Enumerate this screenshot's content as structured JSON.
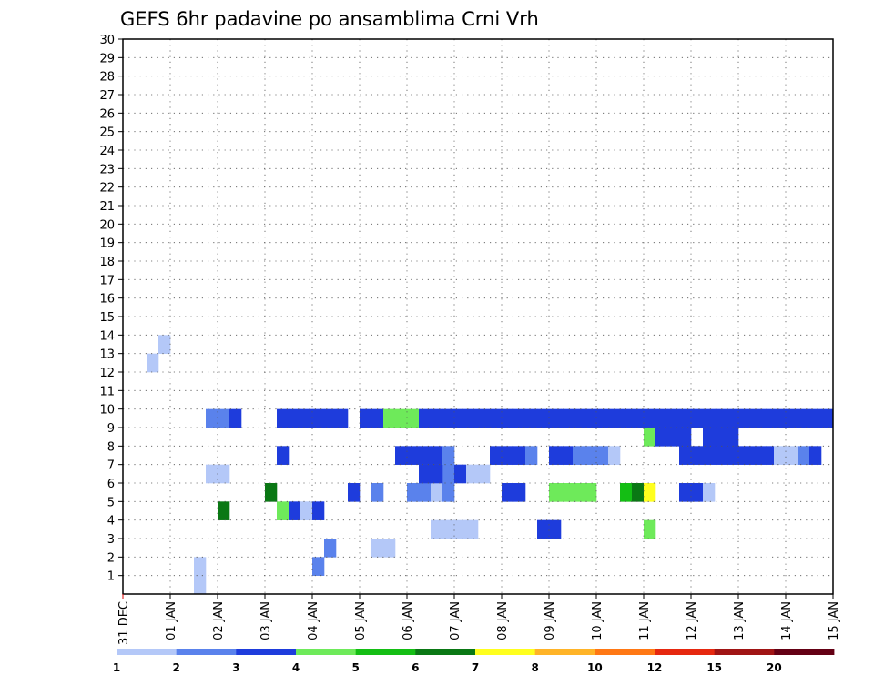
{
  "chart_data": {
    "type": "heatmap",
    "title": "GEFS 6hr padavine po ansamblima Crni Vrh",
    "xlabel": "",
    "ylabel": "",
    "x_tick_labels": [
      "31 DEC",
      "01 JAN",
      "02 JAN",
      "03 JAN",
      "04 JAN",
      "05 JAN",
      "06 JAN",
      "07 JAN",
      "08 JAN",
      "09 JAN",
      "10 JAN",
      "11 JAN",
      "12 JAN",
      "13 JAN",
      "14 JAN",
      "15 JAN"
    ],
    "y_tick_labels": [
      "1",
      "2",
      "3",
      "4",
      "5",
      "6",
      "7",
      "8",
      "9",
      "10",
      "11",
      "12",
      "13",
      "14",
      "15",
      "16",
      "17",
      "18",
      "19",
      "20",
      "21",
      "22",
      "23",
      "24",
      "25",
      "26",
      "27",
      "28",
      "29",
      "30"
    ],
    "xlim_days": [
      0,
      15
    ],
    "ylim_members": [
      0,
      30
    ],
    "time_step_hours": 6,
    "grid": true,
    "colorbar": {
      "placement": "bottom",
      "labels": [
        "1",
        "2",
        "3",
        "4",
        "5",
        "6",
        "7",
        "8",
        "10",
        "12",
        "15",
        "20"
      ],
      "colors": [
        "#b4c8f8",
        "#5a82ec",
        "#1e3cdc",
        "#6eea5a",
        "#14be14",
        "#0a7814",
        "#ffff1e",
        "#ffb428",
        "#ff7814",
        "#e6280f",
        "#a01414",
        "#640014"
      ]
    },
    "values": [
      [
        0.5,
        13,
        0.25,
        1
      ],
      [
        0.75,
        14,
        0.25,
        1
      ],
      [
        1.5,
        1,
        0.25,
        1
      ],
      [
        1.5,
        2,
        0.25,
        1
      ],
      [
        4.0,
        2,
        0.25,
        2
      ],
      [
        4.25,
        3,
        0.25,
        2
      ],
      [
        5.25,
        3,
        0.25,
        1
      ],
      [
        5.5,
        3,
        0.25,
        1
      ],
      [
        6.5,
        4,
        0.25,
        1
      ],
      [
        6.75,
        4,
        0.25,
        1
      ],
      [
        7.0,
        4,
        0.25,
        1
      ],
      [
        7.25,
        4,
        0.25,
        1
      ],
      [
        8.75,
        4,
        0.25,
        3
      ],
      [
        9.0,
        4,
        0.25,
        3
      ],
      [
        11.0,
        4,
        0.25,
        4
      ],
      [
        2.0,
        5,
        0.25,
        6
      ],
      [
        3.25,
        5,
        0.25,
        4
      ],
      [
        3.5,
        5,
        0.25,
        3
      ],
      [
        3.75,
        5,
        0.25,
        1
      ],
      [
        4.0,
        5,
        0.25,
        3
      ],
      [
        3.0,
        6,
        0.25,
        6
      ],
      [
        4.75,
        6,
        0.25,
        3
      ],
      [
        5.25,
        6,
        0.25,
        2
      ],
      [
        6.0,
        6,
        0.25,
        2
      ],
      [
        6.25,
        6,
        0.25,
        2
      ],
      [
        6.5,
        6,
        0.25,
        1
      ],
      [
        6.75,
        6,
        0.25,
        2
      ],
      [
        8.0,
        6,
        0.25,
        3
      ],
      [
        8.25,
        6,
        0.25,
        3
      ],
      [
        9.0,
        6,
        0.25,
        4
      ],
      [
        9.25,
        6,
        0.25,
        4
      ],
      [
        9.5,
        6,
        0.25,
        4
      ],
      [
        9.75,
        6,
        0.25,
        4
      ],
      [
        10.5,
        6,
        0.25,
        5
      ],
      [
        10.75,
        6,
        0.25,
        6
      ],
      [
        11.0,
        6,
        0.25,
        7
      ],
      [
        11.75,
        6,
        0.25,
        3
      ],
      [
        12.0,
        6,
        0.25,
        3
      ],
      [
        12.25,
        6,
        0.25,
        1
      ],
      [
        1.75,
        7,
        0.25,
        1
      ],
      [
        2.0,
        7,
        0.25,
        1
      ],
      [
        6.75,
        7,
        0.25,
        2
      ],
      [
        6.25,
        7,
        0.25,
        3
      ],
      [
        6.5,
        7,
        0.25,
        3
      ],
      [
        7.0,
        7,
        0.25,
        3
      ],
      [
        7.25,
        7,
        0.25,
        1
      ],
      [
        7.5,
        7,
        0.25,
        1
      ],
      [
        3.25,
        8,
        0.25,
        3
      ],
      [
        5.75,
        8,
        0.25,
        3
      ],
      [
        6.0,
        8,
        0.25,
        3
      ],
      [
        6.25,
        8,
        0.25,
        3
      ],
      [
        6.5,
        8,
        0.25,
        3
      ],
      [
        6.75,
        8,
        0.25,
        2
      ],
      [
        7.75,
        8,
        0.25,
        3
      ],
      [
        8.0,
        8,
        0.25,
        3
      ],
      [
        8.25,
        8,
        0.25,
        3
      ],
      [
        8.5,
        8,
        0.25,
        2
      ],
      [
        9.0,
        8,
        0.25,
        3
      ],
      [
        9.25,
        8,
        0.25,
        3
      ],
      [
        9.5,
        8,
        0.25,
        2
      ],
      [
        9.75,
        8,
        0.25,
        2
      ],
      [
        10.0,
        8,
        0.25,
        2
      ],
      [
        10.25,
        8,
        0.25,
        1
      ],
      [
        11.75,
        8,
        0.25,
        3
      ],
      [
        12.0,
        8,
        0.25,
        3
      ],
      [
        12.25,
        8,
        0.25,
        3
      ],
      [
        12.5,
        8,
        0.25,
        3
      ],
      [
        12.75,
        8,
        0.25,
        3
      ],
      [
        13.0,
        8,
        0.25,
        3
      ],
      [
        13.25,
        8,
        0.25,
        3
      ],
      [
        13.5,
        8,
        0.25,
        3
      ],
      [
        13.75,
        8,
        0.25,
        1
      ],
      [
        14.0,
        8,
        0.25,
        1
      ],
      [
        14.25,
        8,
        0.25,
        2
      ],
      [
        14.5,
        8,
        0.25,
        3
      ],
      [
        11.0,
        9,
        0.25,
        4
      ],
      [
        11.25,
        9,
        0.25,
        3
      ],
      [
        11.5,
        9,
        0.25,
        3
      ],
      [
        11.75,
        9,
        0.25,
        3
      ],
      [
        12.25,
        9,
        0.25,
        3
      ],
      [
        12.5,
        9,
        0.25,
        3
      ],
      [
        12.75,
        9,
        0.25,
        3
      ],
      [
        1.75,
        10,
        0.25,
        2
      ],
      [
        2.0,
        10,
        0.25,
        2
      ],
      [
        2.25,
        10,
        0.25,
        3
      ],
      [
        3.25,
        10,
        0.25,
        3
      ],
      [
        3.5,
        10,
        0.25,
        3
      ],
      [
        3.75,
        10,
        0.25,
        3
      ],
      [
        4.0,
        10,
        0.25,
        3
      ],
      [
        4.25,
        10,
        0.25,
        3
      ],
      [
        4.5,
        10,
        0.25,
        3
      ],
      [
        5.0,
        10,
        0.25,
        3
      ],
      [
        5.25,
        10,
        0.25,
        3
      ],
      [
        5.5,
        10,
        0.25,
        4
      ],
      [
        5.75,
        10,
        0.25,
        4
      ],
      [
        6.0,
        10,
        0.25,
        4
      ],
      [
        6.25,
        10,
        0.25,
        3
      ],
      [
        6.5,
        10,
        0.25,
        3
      ],
      [
        6.75,
        10,
        0.25,
        3
      ],
      [
        7.0,
        10,
        0.25,
        3
      ],
      [
        7.25,
        10,
        0.25,
        3
      ],
      [
        7.5,
        10,
        0.25,
        3
      ],
      [
        7.75,
        10,
        0.25,
        3
      ],
      [
        8.0,
        10,
        0.25,
        3
      ],
      [
        8.25,
        10,
        0.25,
        3
      ],
      [
        8.5,
        10,
        0.25,
        3
      ],
      [
        8.75,
        10,
        0.25,
        3
      ],
      [
        9.0,
        10,
        0.25,
        3
      ],
      [
        9.25,
        10,
        0.25,
        3
      ],
      [
        9.5,
        10,
        0.25,
        3
      ],
      [
        9.75,
        10,
        0.25,
        3
      ],
      [
        10.0,
        10,
        0.25,
        3
      ],
      [
        10.25,
        10,
        0.25,
        3
      ],
      [
        10.5,
        10,
        0.25,
        3
      ],
      [
        10.75,
        10,
        0.25,
        3
      ],
      [
        11.0,
        10,
        0.25,
        3
      ],
      [
        11.25,
        10,
        0.25,
        3
      ],
      [
        11.5,
        10,
        0.25,
        3
      ],
      [
        11.75,
        10,
        0.25,
        3
      ],
      [
        12.0,
        10,
        0.25,
        3
      ],
      [
        12.25,
        10,
        0.25,
        3
      ],
      [
        12.5,
        10,
        0.25,
        3
      ],
      [
        12.75,
        10,
        0.25,
        3
      ],
      [
        13.0,
        10,
        0.25,
        3
      ],
      [
        13.25,
        10,
        0.25,
        3
      ],
      [
        13.5,
        10,
        0.25,
        3
      ],
      [
        13.75,
        10,
        0.25,
        3
      ],
      [
        14.0,
        10,
        0.25,
        3
      ],
      [
        14.25,
        10,
        0.25,
        3
      ],
      [
        14.5,
        10,
        0.25,
        3
      ],
      [
        14.75,
        10,
        0.25,
        3
      ]
    ]
  }
}
